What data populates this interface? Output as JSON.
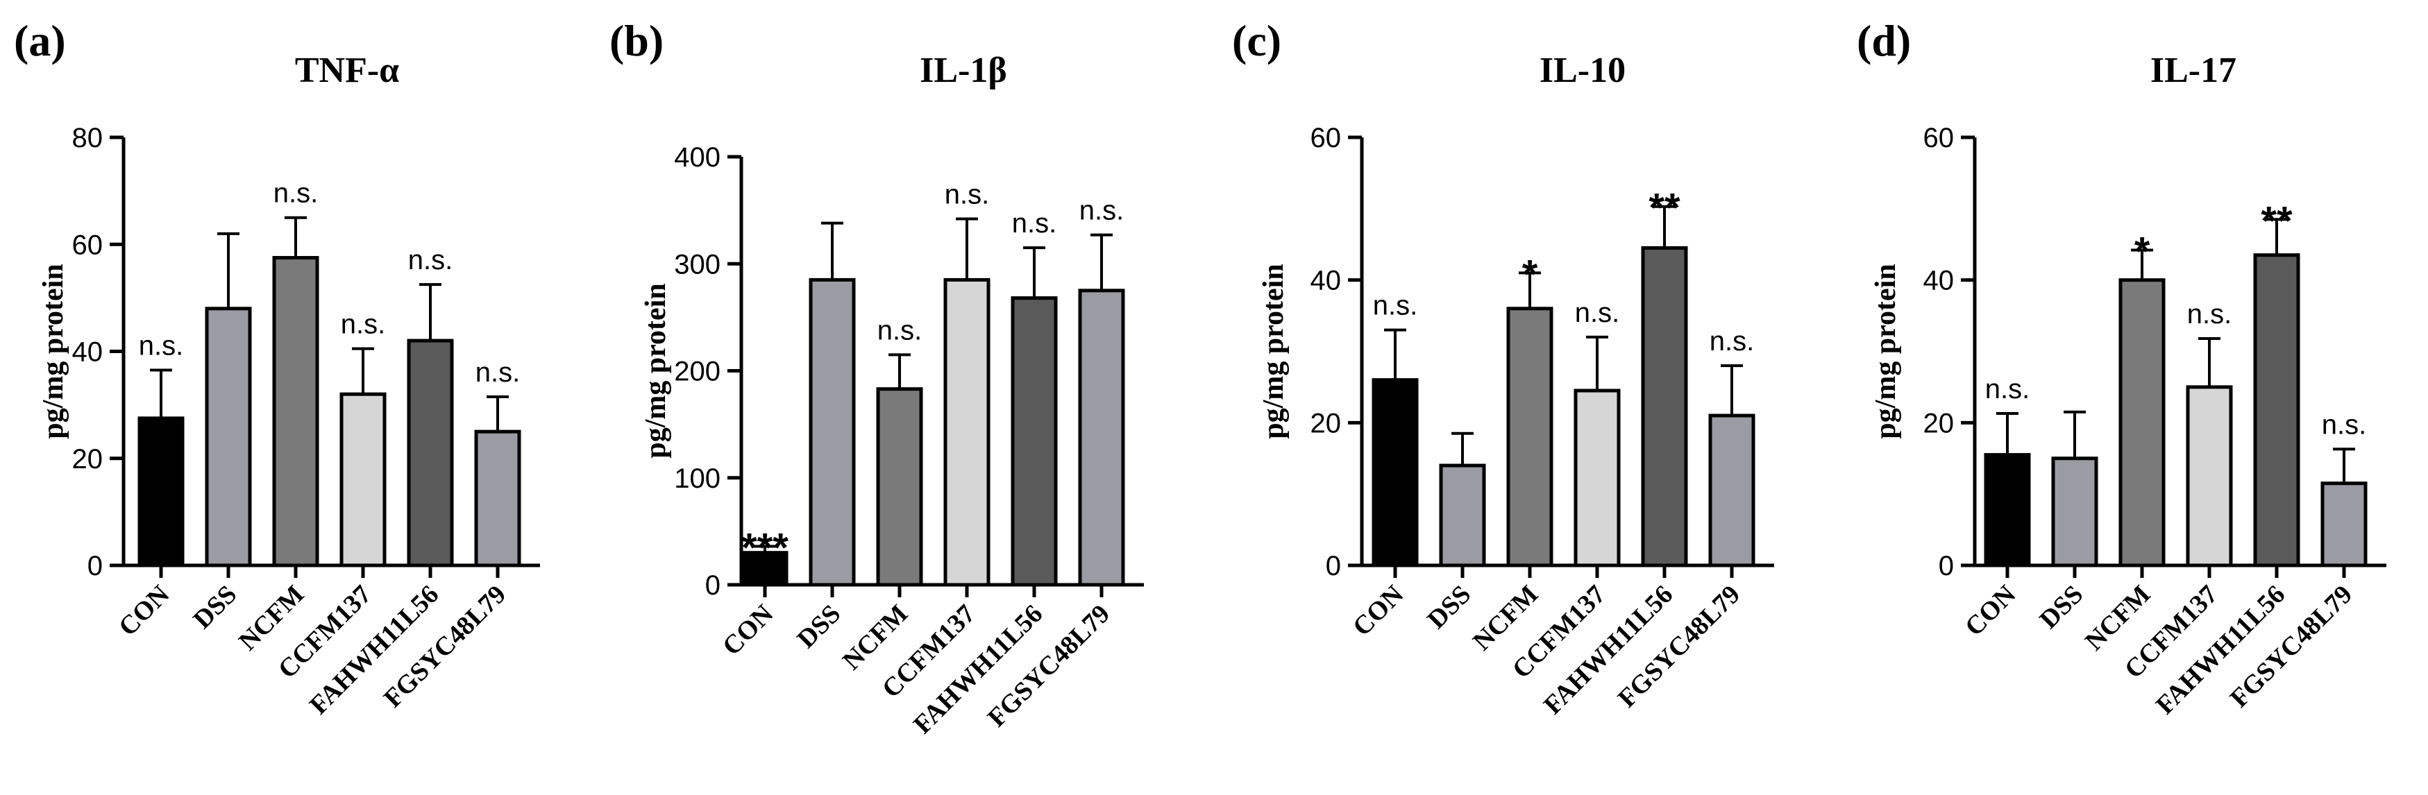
{
  "colors": {
    "CON": "#000000",
    "DSS": "#9b9ba3",
    "NCFM": "#7a7a7a",
    "CCFM137": "#d6d6d6",
    "FAHWH11L56": "#5a5a5a",
    "FGSYC48L79": "#9b9ba3"
  },
  "chart_data": [
    {
      "type": "bar",
      "panel": "(a)",
      "title": "TNF-α",
      "ylabel": "pg/mg protein",
      "ylim": [
        0,
        80
      ],
      "yticks": [
        0,
        20,
        40,
        60,
        80
      ],
      "categories": [
        "CON",
        "DSS",
        "NCFM",
        "CCFM137",
        "FAHWH11L56",
        "FGSYC48L79"
      ],
      "values": [
        27.5,
        48,
        57.5,
        32,
        42,
        25
      ],
      "errors": [
        9,
        14,
        7.5,
        8.5,
        10.5,
        6.5
      ],
      "significance": [
        "n.s.",
        "",
        "n.s.",
        "n.s.",
        "n.s.",
        "n.s."
      ]
    },
    {
      "type": "bar",
      "panel": "(b)",
      "title": "IL-1β",
      "ylabel": "pg/mg protein",
      "ylim": [
        0,
        400
      ],
      "yticks": [
        0,
        100,
        200,
        300,
        400
      ],
      "categories": [
        "CON",
        "DSS",
        "NCFM",
        "CCFM137",
        "FAHWH11L56",
        "FGSYC48L79"
      ],
      "values": [
        30,
        285,
        183,
        285,
        268,
        275
      ],
      "errors": [
        6,
        53,
        32,
        57,
        47,
        52
      ],
      "significance": [
        "***",
        "",
        "n.s.",
        "n.s.",
        "n.s.",
        "n.s."
      ]
    },
    {
      "type": "bar",
      "panel": "(c)",
      "title": "IL-10",
      "ylabel": "pg/mg protein",
      "ylim": [
        0,
        60
      ],
      "yticks": [
        0,
        20,
        40,
        60
      ],
      "categories": [
        "CON",
        "DSS",
        "NCFM",
        "CCFM137",
        "FAHWH11L56",
        "FGSYC48L79"
      ],
      "values": [
        26,
        14,
        36,
        24.5,
        44.5,
        21
      ],
      "errors": [
        7,
        4.5,
        5,
        7.5,
        5.8,
        7
      ],
      "significance": [
        "n.s.",
        "",
        "*",
        "n.s.",
        "**",
        "n.s."
      ]
    },
    {
      "type": "bar",
      "panel": "(d)",
      "title": "IL-17",
      "ylabel": "pg/mg protein",
      "ylim": [
        0,
        60
      ],
      "yticks": [
        0,
        20,
        40,
        60
      ],
      "categories": [
        "CON",
        "DSS",
        "NCFM",
        "CCFM137",
        "FAHWH11L56",
        "FGSYC48L79"
      ],
      "values": [
        15.5,
        15,
        40,
        25,
        43.5,
        11.5
      ],
      "errors": [
        5.8,
        6.5,
        4.2,
        6.8,
        5,
        4.8
      ],
      "significance": [
        "n.s.",
        "",
        "*",
        "n.s.",
        "**",
        "n.s."
      ]
    }
  ]
}
